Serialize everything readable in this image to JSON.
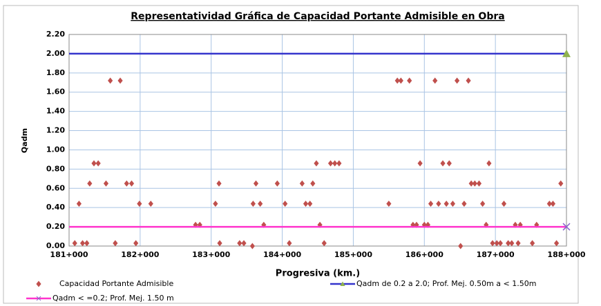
{
  "chart_data": {
    "type": "scatter",
    "title": "Representatividad Gráfica de Capacidad Portante Admisible en Obra",
    "x_label": "Progresiva (km.)",
    "y_label": "Qadm",
    "xlim": [
      181000,
      188000
    ],
    "xticks": [
      {
        "value": 181000,
        "label": "181+000"
      },
      {
        "value": 182000,
        "label": "182+000"
      },
      {
        "value": 183000,
        "label": "183+000"
      },
      {
        "value": 184000,
        "label": "184+000"
      },
      {
        "value": 185000,
        "label": "185+000"
      },
      {
        "value": 186000,
        "label": "186+000"
      },
      {
        "value": 187000,
        "label": "187+000"
      },
      {
        "value": 188000,
        "label": "188+000"
      }
    ],
    "ylim": [
      0,
      2.2
    ],
    "yticks": [
      {
        "value": 0,
        "label": "0.00"
      },
      {
        "value": 0.2,
        "label": "0.20"
      },
      {
        "value": 0.4,
        "label": "0.40"
      },
      {
        "value": 0.6,
        "label": "0.60"
      },
      {
        "value": 0.8,
        "label": "0.80"
      },
      {
        "value": 1.0,
        "label": "1.00"
      },
      {
        "value": 1.2,
        "label": "1.20"
      },
      {
        "value": 1.4,
        "label": "1.40"
      },
      {
        "value": 1.6,
        "label": "1.60"
      },
      {
        "value": 1.8,
        "label": "1.80"
      },
      {
        "value": 2.0,
        "label": "2.00"
      },
      {
        "value": 2.2,
        "label": "2.20"
      }
    ],
    "grid": true,
    "series": [
      {
        "name": "Capacidad Portante Admisible",
        "color": "#c0504d",
        "marker": "diamond",
        "mode": "markers",
        "x": [
          181080,
          181140,
          181190,
          181250,
          181290,
          181350,
          181410,
          181520,
          181580,
          181650,
          181720,
          181810,
          181880,
          181940,
          181990,
          182150,
          182780,
          182840,
          183060,
          183110,
          183120,
          183400,
          183460,
          183580,
          183590,
          183630,
          183690,
          183740,
          183930,
          184040,
          184100,
          184280,
          184330,
          184390,
          184430,
          184480,
          184530,
          184590,
          184680,
          184740,
          184800,
          185500,
          185620,
          185670,
          185790,
          185840,
          185890,
          185940,
          186000,
          186050,
          186090,
          186150,
          186200,
          186260,
          186310,
          186350,
          186400,
          186460,
          186510,
          186560,
          186620,
          186660,
          186710,
          186770,
          186820,
          186870,
          186910,
          186960,
          187020,
          187070,
          187120,
          187180,
          187230,
          187280,
          187320,
          187350,
          187520,
          187580,
          187760,
          187810,
          187860,
          187920
        ],
        "values": [
          0.03,
          0.44,
          0.03,
          0.03,
          0.65,
          0.86,
          0.86,
          0.65,
          1.72,
          0.03,
          1.72,
          0.65,
          0.65,
          0.03,
          0.44,
          0.44,
          0.22,
          0.22,
          0.44,
          0.65,
          0.03,
          0.03,
          0.03,
          0.0,
          0.44,
          0.65,
          0.44,
          0.22,
          0.65,
          0.44,
          0.03,
          0.65,
          0.44,
          0.44,
          0.65,
          0.86,
          0.22,
          0.03,
          0.86,
          0.86,
          0.86,
          0.44,
          1.72,
          1.72,
          1.72,
          0.22,
          0.22,
          0.86,
          0.22,
          0.22,
          0.44,
          1.72,
          0.44,
          0.86,
          0.44,
          0.86,
          0.44,
          1.72,
          0.0,
          0.44,
          1.72,
          0.65,
          0.65,
          0.65,
          0.44,
          0.22,
          0.86,
          0.03,
          0.03,
          0.03,
          0.44,
          0.03,
          0.03,
          0.22,
          0.03,
          0.22,
          0.03,
          0.22,
          0.44,
          0.44,
          0.03,
          0.65
        ]
      },
      {
        "name": "Qadm de 0.2 a 2.0; Prof. Mej. 0.50m a < 1.50m",
        "color": "#3333cc",
        "marker": "triangle",
        "marker_color": "#8fb24f",
        "mode": "lines+markers",
        "x": [
          181000,
          188000
        ],
        "values": [
          2.0,
          2.0
        ]
      },
      {
        "name": "Qadm < =0.2; Prof. Mej. 1.50 m",
        "color": "#ff33cc",
        "marker": "x",
        "marker_color": "#8866cc",
        "mode": "lines+markers",
        "x": [
          181000,
          188000
        ],
        "values": [
          0.2,
          0.2
        ]
      }
    ]
  }
}
